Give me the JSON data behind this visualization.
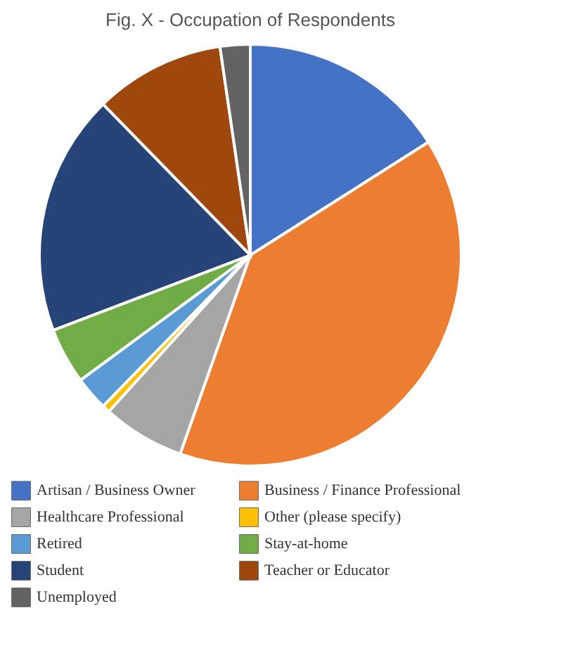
{
  "chart_data": {
    "type": "pie",
    "title": "Fig. X - Occupation of Respondents",
    "categories": [
      "Artisan / Business Owner",
      "Business / Finance Professional",
      "Healthcare Professional",
      "Other (please specify)",
      "Retired",
      "Stay-at-home",
      "Student",
      "Teacher or Educator",
      "Unemployed"
    ],
    "values": [
      16,
      39.4,
      6.3,
      0.6,
      2.6,
      4.3,
      18.5,
      10,
      2.3
    ],
    "colors": [
      "#4472c4",
      "#ed7d31",
      "#a5a5a5",
      "#ffc000",
      "#5b9bd5",
      "#70ad47",
      "#264478",
      "#9e480e",
      "#636363"
    ],
    "legend": "bottom"
  }
}
